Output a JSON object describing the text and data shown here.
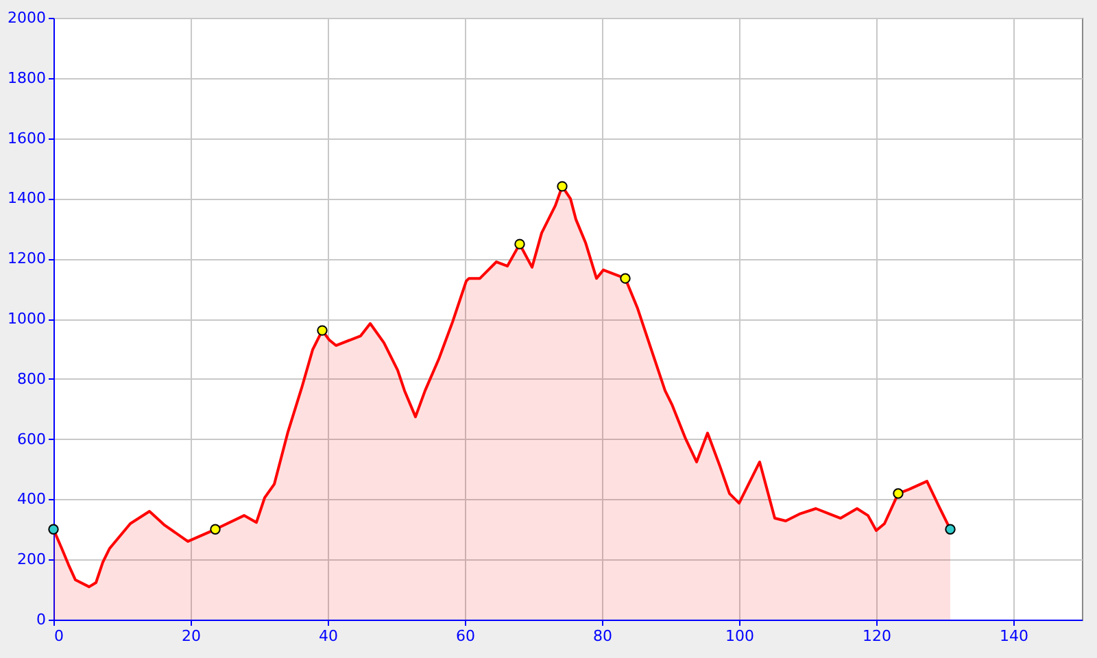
{
  "chart_data": {
    "type": "area",
    "xlim": [
      0,
      150
    ],
    "xticks": [
      0,
      20,
      40,
      60,
      80,
      100,
      120,
      140
    ],
    "ylim": [
      0,
      2000
    ],
    "yticks": [
      0,
      200,
      400,
      600,
      800,
      1000,
      1200,
      1400,
      1600,
      1800,
      2000
    ],
    "grid": true,
    "series": [
      {
        "color": "#ff0000",
        "x": [
          0,
          1.2,
          2.2,
          3.2,
          5.2,
          6.2,
          7.2,
          8.2,
          11.2,
          14,
          16.2,
          19.6,
          23.6,
          27.8,
          29.6,
          30.8,
          32.2,
          34.2,
          36.2,
          37.8,
          39.2,
          40.2,
          41.2,
          44.8,
          46.2,
          48.2,
          50.2,
          51.2,
          52.8,
          54.2,
          56.2,
          58.2,
          60.2,
          60.6,
          62.2,
          64.6,
          66.2,
          68,
          69.8,
          71.2,
          73.2,
          74.2,
          75.4,
          76.2,
          77.6,
          79.2,
          80.2,
          83.4,
          85.2,
          87.2,
          89.2,
          90.2,
          92.2,
          93.8,
          95.4,
          97.2,
          98.6,
          100,
          103,
          105.2,
          106.8,
          108.8,
          111.2,
          113.2,
          114.8,
          117.2,
          118.8,
          120,
          121.2,
          123.2,
          124.8,
          127.4,
          129.2,
          130.8
        ],
        "values": [
          300,
          237,
          182,
          132,
          109,
          123,
          191,
          237,
          319,
          360,
          314,
          260,
          300,
          346,
          323,
          405,
          450,
          624,
          770,
          897,
          961,
          930,
          911,
          943,
          984,
          920,
          829,
          761,
          674,
          761,
          866,
          989,
          1125,
          1134,
          1134,
          1189,
          1175,
          1248,
          1171,
          1285,
          1376,
          1440,
          1399,
          1330,
          1253,
          1134,
          1162,
          1134,
          1034,
          897,
          761,
          715,
          601,
          524,
          620,
          510,
          419,
          387,
          524,
          337,
          328,
          351,
          369,
          351,
          337,
          369,
          346,
          296,
          319,
          419,
          433,
          460,
          374,
          300
        ]
      },
      {
        "type": "scatter",
        "color": "#ffff00",
        "marker": "circle",
        "x": [
          23.6,
          39.2,
          68,
          74.2,
          83.4,
          123.2
        ],
        "values": [
          300,
          961,
          1248,
          1440,
          1134,
          419
        ]
      },
      {
        "type": "scatter",
        "color": "#33cccc",
        "marker": "circle",
        "x": [
          0,
          130.8
        ],
        "values": [
          300,
          300
        ]
      }
    ]
  }
}
